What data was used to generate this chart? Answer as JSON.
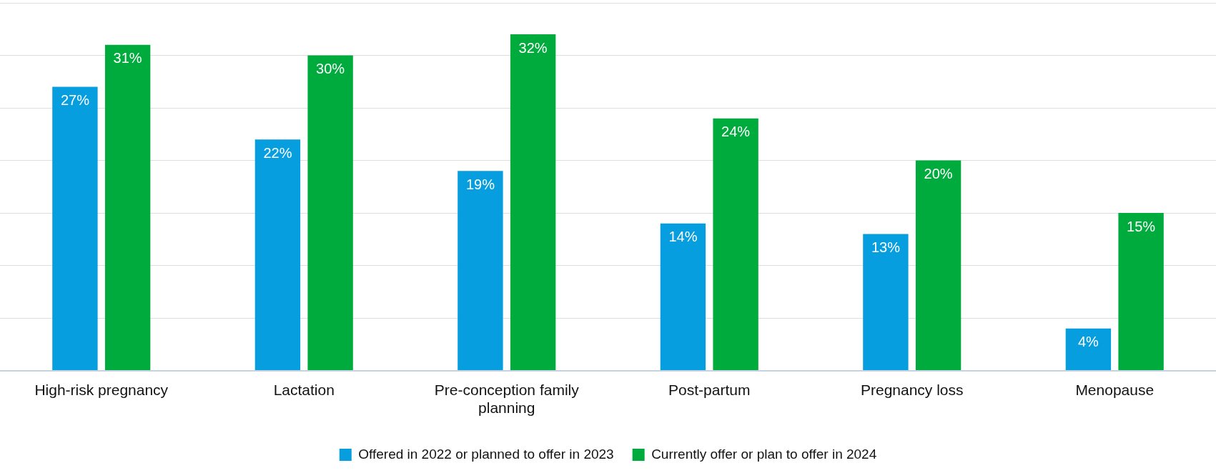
{
  "chart_data": {
    "type": "bar",
    "categories": [
      "High-risk pregnancy",
      "Lactation",
      "Pre-conception family planning",
      "Post-partum",
      "Pregnancy loss",
      "Menopause"
    ],
    "series": [
      {
        "name": "Offered in 2022 or planned to offer in 2023",
        "color": "#079ee0",
        "values": [
          27,
          22,
          19,
          14,
          13,
          4
        ],
        "value_labels": [
          "27%",
          "22%",
          "19%",
          "14%",
          "13%",
          "4%"
        ]
      },
      {
        "name": "Currently offer or plan to offer in 2024",
        "color": "#00ab3e",
        "values": [
          31,
          30,
          32,
          24,
          20,
          15
        ],
        "value_labels": [
          "31%",
          "30%",
          "32%",
          "24%",
          "20%",
          "15%"
        ]
      }
    ],
    "ylim": [
      0,
      35
    ],
    "yticks": [
      {
        "value": 0,
        "label": null
      },
      {
        "value": 5,
        "label": null
      },
      {
        "value": 10,
        "label": null
      },
      {
        "value": 15,
        "label": null
      },
      {
        "value": 20,
        "label": null
      },
      {
        "value": 25,
        "label": null
      },
      {
        "value": 30,
        "label": null
      },
      {
        "value": 35,
        "label": null
      }
    ],
    "tick_labels": "x",
    "grid": "y",
    "legend": "bottom"
  }
}
